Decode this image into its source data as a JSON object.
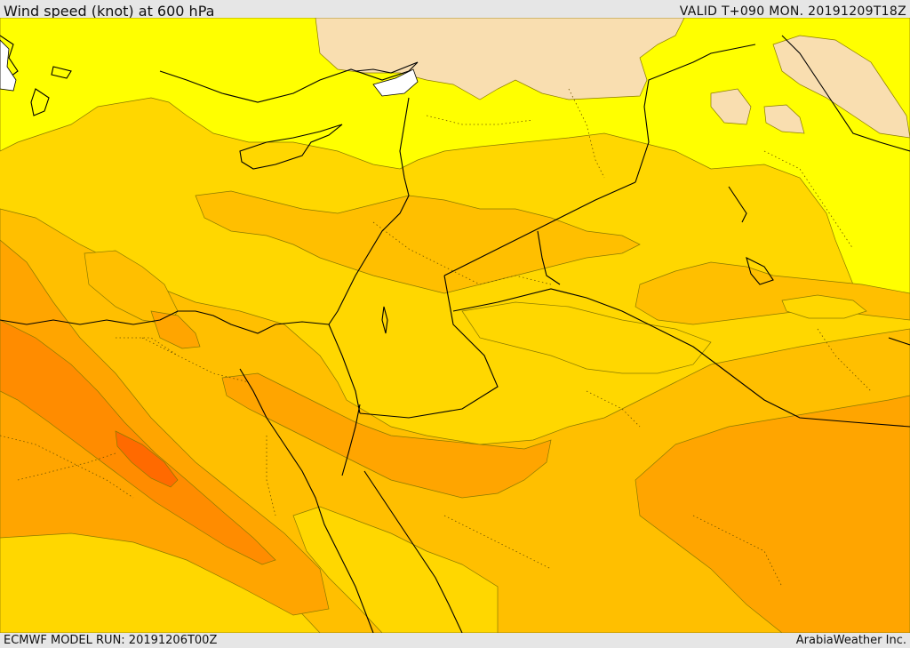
{
  "header": {
    "title": "Wind speed (knot) at 600 hPa",
    "valid": "VALID T+090 MON. 20191209T18Z"
  },
  "footer": {
    "model_run": "ECMWF MODEL RUN: 20191206T00Z",
    "credit": "ArabiaWeather Inc."
  },
  "colors": {
    "band_10_15": "#f9deb0",
    "band_15_20": "#ffff00",
    "band_20_25": "#ffd700",
    "band_25_30": "#ffbf00",
    "band_30_35": "#ffa500",
    "band_35_40": "#ff8c00",
    "band_40_45": "#ff6a00",
    "band_45_50": "#ff4a00",
    "coastline": "#000000",
    "contour": "#7a5a00",
    "calm": "#ffffff"
  }
}
